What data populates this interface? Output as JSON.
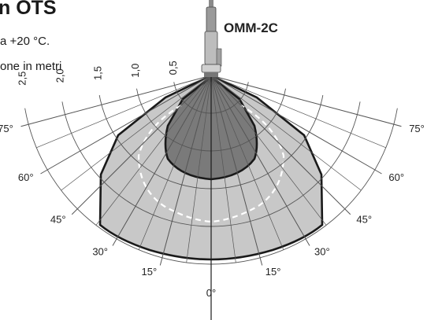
{
  "header": {
    "title_partial": "n OTS",
    "line1_partial": "a +20 °C.",
    "line2_partial": "one in metri"
  },
  "device": {
    "name": "OMM-2C"
  },
  "range_labels": [
    "0,5",
    "1,0",
    "1,5",
    "2,0",
    "2,5"
  ],
  "angle_labels_left": [
    "75°",
    "60°",
    "45°",
    "30°",
    "15°"
  ],
  "angle_labels_right": [
    "75°",
    "60°",
    "45°",
    "30°",
    "15°"
  ],
  "center_label": "0°",
  "colors": {
    "outer_region": "#c8c8c8",
    "inner_region": "#7a7a7a",
    "grid": "#555555",
    "dashed_boundary": "#ffffff",
    "outline": "#1a1a1a"
  }
}
